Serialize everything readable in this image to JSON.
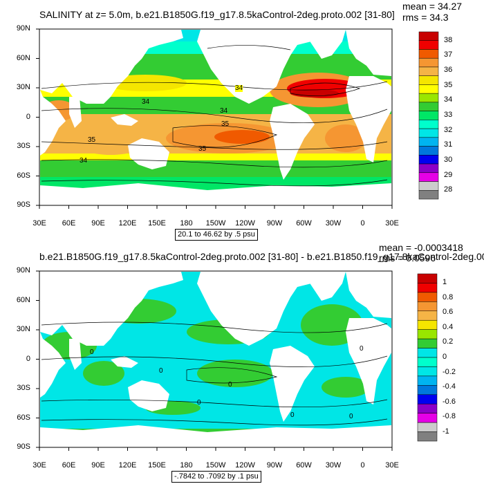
{
  "panels": [
    {
      "title": "SALINITY at z=   5.0m, b.e21.B1850G.f19_g17.8.5kaControl-2deg.proto.002 [31-80]",
      "mean": "mean = 34.27",
      "rms": "rms = 34.3",
      "caption": "20.1 to 46.62 by .5 psu",
      "contour_labels": [
        "34",
        "34",
        "34",
        "35",
        "35",
        "35",
        "34"
      ],
      "colorbar": {
        "labels": [
          "38",
          "37",
          "36",
          "35",
          "34",
          "33",
          "32",
          "31",
          "30",
          "29",
          "28"
        ],
        "colors": [
          "#c80000",
          "#f00000",
          "#f05a00",
          "#f59632",
          "#f5b446",
          "#f5e600",
          "#ffff00",
          "#99e600",
          "#33cc33",
          "#00e666",
          "#00ffcc",
          "#00e6e6",
          "#00b4f0",
          "#0078dc",
          "#0000f0",
          "#8c00c8",
          "#e600e6",
          "#cccccc",
          "#808080"
        ]
      }
    },
    {
      "title": "b.e21.B1850G.f19_g17.8.5kaControl-2deg.proto.002 [31-80] - b.e21.B1850.f19_g17.8kaControl-2deg.00",
      "mean": "mean = -0.0003418",
      "rms": "rms = 0.0596",
      "caption": "-.7842 to .7092 by .1 psu",
      "contour_labels": [
        "0",
        "0",
        "0",
        "0",
        "0",
        "0",
        "0"
      ],
      "colorbar": {
        "labels": [
          "1",
          "0.8",
          "0.6",
          "0.4",
          "0.2",
          "0",
          "-0.2",
          "-0.4",
          "-0.6",
          "-0.8",
          "-1"
        ],
        "colors": [
          "#c80000",
          "#f00000",
          "#f05a00",
          "#f59632",
          "#f5b446",
          "#f5e600",
          "#99e600",
          "#33cc33",
          "#00e6e6",
          "#00ffcc",
          "#00e6e6",
          "#00b4f0",
          "#0078dc",
          "#0000f0",
          "#8c00c8",
          "#e600e6",
          "#cccccc",
          "#808080"
        ]
      }
    }
  ],
  "lat_labels": [
    "90N",
    "60N",
    "30N",
    "0",
    "30S",
    "60S",
    "90S"
  ],
  "lon_labels": [
    "30E",
    "60E",
    "90E",
    "120E",
    "150E",
    "180",
    "150W",
    "120W",
    "90W",
    "60W",
    "30W",
    "0",
    "30E"
  ]
}
